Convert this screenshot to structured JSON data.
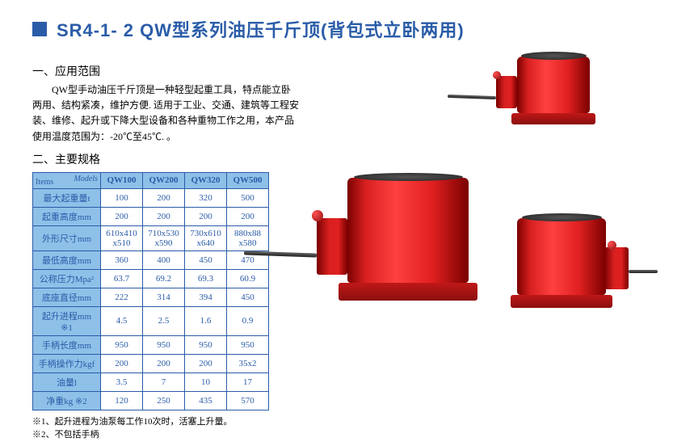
{
  "header": {
    "title": "SR4-1- 2   QW型系列油压千斤顶(背包式立卧两用)",
    "square_color": "#2a5ca8",
    "title_color": "#2a5ca8"
  },
  "section1": {
    "title": "一、应用范围",
    "body": "QW型手动油压千斤顶是一种轻型起重工具，特点能立卧两用、结构紧凑，维护方便. 适用于工业、交通、建筑等工程安装、维修、起升或下降大型设备和各种重物工作之用，本产品使用温度范围为：-20℃至45℃. 。"
  },
  "section2": {
    "title": "二、主要规格"
  },
  "table": {
    "head_left": "Items",
    "head_models": "Models",
    "model_cols": [
      "QW100",
      "QW200",
      "QW320",
      "QW500"
    ],
    "rows": [
      {
        "label": "最大起重量t",
        "cells": [
          "100",
          "200",
          "320",
          "500"
        ]
      },
      {
        "label": "起重高度mm",
        "cells": [
          "200",
          "200",
          "200",
          "200"
        ]
      },
      {
        "label": "外形尺寸mm",
        "cells": [
          "610x410 x510",
          "710x530 x590",
          "730x610 x640",
          "880x88 x580"
        ]
      },
      {
        "label": "最低高度mm",
        "cells": [
          "360",
          "400",
          "450",
          "470"
        ]
      },
      {
        "label": "公称压力Mpa²",
        "cells": [
          "63.7",
          "69.2",
          "69.3",
          "60.9"
        ]
      },
      {
        "label": "底座直径mm",
        "cells": [
          "222",
          "314",
          "394",
          "450"
        ]
      },
      {
        "label": "起升进程mm ※1",
        "cells": [
          "4.5",
          "2.5",
          "1.6",
          "0.9"
        ]
      },
      {
        "label": "手柄长度mm",
        "cells": [
          "950",
          "950",
          "950",
          "950"
        ]
      },
      {
        "label": "手柄操作力kgf",
        "cells": [
          "200",
          "200",
          "200",
          "35x2"
        ]
      },
      {
        "label": "油量l",
        "cells": [
          "3.5",
          "7",
          "10",
          "17"
        ]
      },
      {
        "label": "净重kg ※2",
        "cells": [
          "120",
          "250",
          "435",
          "570"
        ]
      }
    ],
    "border_color": "#2a5ca8",
    "header_bg": "#8fc0e8"
  },
  "footnotes": {
    "line1": "※1、起升进程为油泵每工作10次时，活塞上升量。",
    "line2": "※2、不包括手柄"
  },
  "colors": {
    "jack_red": "#d82020",
    "jack_dark": "#7a0000",
    "metal": "#333333"
  }
}
